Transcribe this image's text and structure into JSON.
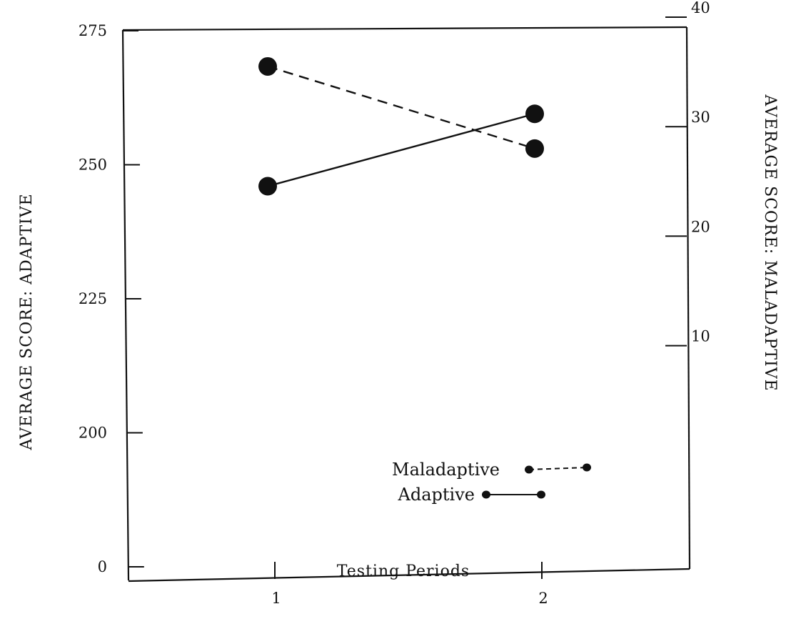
{
  "chart_data": {
    "type": "line",
    "x": [
      1,
      2
    ],
    "xlabel": "Testing Periods",
    "x_ticks": [
      "1",
      "2"
    ],
    "ylabel_left": "AVERAGE SCORE:  ADAPTIVE",
    "ylabel_right": "AVERAGE SCORE:  MALADAPTIVE",
    "left_ticks": [
      "0",
      "200",
      "225",
      "250",
      "275"
    ],
    "left_tick_values": [
      175,
      200,
      225,
      250,
      275
    ],
    "left_ylim": [
      175,
      275
    ],
    "right_ticks": [
      "10",
      "20",
      "30",
      "40"
    ],
    "right_tick_values": [
      10,
      20,
      30,
      40
    ],
    "right_ylim": [
      -10,
      40
    ],
    "series": [
      {
        "name": "Maladaptive",
        "axis": "right",
        "style": "dashed",
        "values": [
          35.5,
          28
        ]
      },
      {
        "name": "Adaptive",
        "axis": "left",
        "style": "solid",
        "values": [
          246,
          259.5
        ]
      }
    ],
    "grid": false,
    "legend_position": "bottom-right",
    "colors": {
      "ink": "#111111",
      "background": "#ffffff"
    }
  }
}
